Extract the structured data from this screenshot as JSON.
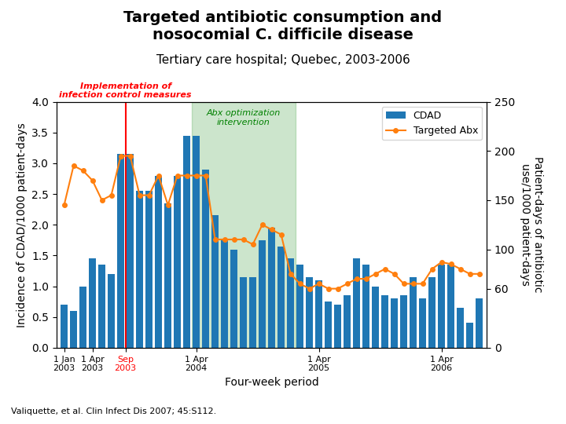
{
  "chart_data": {
    "type": "bar",
    "title": "Targeted antibiotic consumption and\nnosocomial C. difficile disease",
    "subtitle": "Tertiary care hospital; Quebec, 2003-2006",
    "xlabel": "Four-week period",
    "ylabel": "Incidence of CDAD/1000 patient-days",
    "y2label": "Patient-days of antibiotic\nuse/1000 patient-days",
    "x": [
      0,
      1,
      2,
      3,
      4,
      5,
      6,
      7,
      8,
      9,
      10,
      11,
      12,
      13,
      14,
      15,
      16,
      17,
      18,
      19,
      20,
      21,
      22,
      23,
      24,
      25,
      26,
      27,
      28,
      29,
      30,
      31,
      32,
      33,
      34,
      35,
      36,
      37,
      38,
      39,
      40,
      41,
      42,
      43,
      44
    ],
    "xlim": [
      -0.8,
      44.8
    ],
    "xticks": [
      {
        "value": 0,
        "label": "1 Jan\n2003"
      },
      {
        "value": 3,
        "label": "1 Apr\n2003"
      },
      {
        "value": 6.5,
        "label": "Sep\n2003"
      },
      {
        "value": 14,
        "label": "1 Apr\n2004"
      },
      {
        "value": 27,
        "label": "1 Apr\n2005"
      },
      {
        "value": 40,
        "label": "1 Apr\n2006"
      }
    ],
    "ylim": [
      0,
      4
    ],
    "yticks": [
      {
        "value": 0,
        "label": "0.0"
      },
      {
        "value": 0.5,
        "label": "0.5"
      },
      {
        "value": 1,
        "label": "1.0"
      },
      {
        "value": 1.5,
        "label": "1.5"
      },
      {
        "value": 2,
        "label": "2.0"
      },
      {
        "value": 2.5,
        "label": "2.5"
      },
      {
        "value": 3,
        "label": "3.0"
      },
      {
        "value": 3.5,
        "label": "3.5"
      },
      {
        "value": 4,
        "label": "4.0"
      }
    ],
    "y2lim": [
      0,
      250
    ],
    "y2ticks": [
      0,
      60,
      100,
      150,
      200,
      250
    ],
    "grid": false,
    "legend": "upper right",
    "series": [
      {
        "name": "CDAD",
        "type": "bar",
        "values": [
          0.7,
          0.6,
          1.0,
          1.45,
          1.35,
          1.2,
          3.15,
          3.15,
          2.55,
          2.55,
          2.8,
          2.35,
          2.8,
          3.45,
          3.45,
          2.9,
          2.15,
          1.75,
          1.6,
          1.15,
          1.15,
          1.75,
          1.95,
          1.65,
          1.45,
          1.35,
          1.15,
          1.1,
          0.75,
          0.7,
          0.85,
          1.45,
          1.35,
          1.0,
          0.85,
          0.8,
          0.85,
          1.15,
          0.8,
          1.15,
          1.35,
          1.35,
          0.65,
          0.4,
          0.8
        ]
      },
      {
        "name": "Targeted Abx",
        "type": "line",
        "axis": "y2",
        "marker": "o",
        "values": [
          145,
          185,
          180,
          170,
          150,
          155,
          195,
          195,
          155,
          155,
          175,
          145,
          175,
          175,
          175,
          175,
          110,
          110,
          110,
          110,
          105,
          125,
          120,
          115,
          75,
          65,
          60,
          65,
          60,
          60,
          65,
          70,
          70,
          75,
          80,
          75,
          65,
          65,
          65,
          80,
          87,
          85,
          80,
          75,
          75
        ]
      }
    ],
    "vline": {
      "x": 6.5,
      "color": "red",
      "label": "Implementation of\ninfection control measures"
    },
    "span": {
      "start": 13.5,
      "end": 24.5,
      "color": "green",
      "label": "Abx optimization\nintervention"
    },
    "source": "Valiquette, et al. Clin Infect Dis 2007; 45:S112."
  }
}
